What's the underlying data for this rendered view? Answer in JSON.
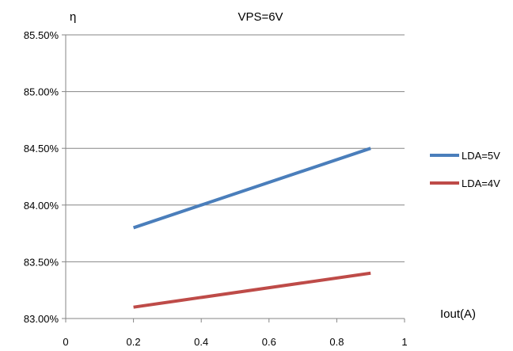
{
  "chart_data": {
    "type": "line",
    "title": "VPS=6V",
    "xlabel": "Iout(A)",
    "ylabel": "η",
    "xlim": [
      0,
      1
    ],
    "ylim": [
      0.83,
      0.855
    ],
    "x_ticks": [
      0,
      0.2,
      0.4,
      0.6,
      0.8,
      1
    ],
    "x_tick_labels": [
      "0",
      "0.2",
      "0.4",
      "0.6",
      "0.8",
      "1"
    ],
    "y_ticks": [
      0.83,
      0.835,
      0.84,
      0.845,
      0.85,
      0.855
    ],
    "y_tick_labels": [
      "83.00%",
      "83.50%",
      "84.00%",
      "84.50%",
      "85.00%",
      "85.50%"
    ],
    "grid": "horizontal",
    "legend_position": "right",
    "series": [
      {
        "name": "LDA=5V",
        "color": "#4a7ebb",
        "x": [
          0.2,
          0.9
        ],
        "y": [
          0.838,
          0.845
        ]
      },
      {
        "name": "LDA=4V",
        "color": "#be4b48",
        "x": [
          0.2,
          0.9
        ],
        "y": [
          0.831,
          0.834
        ]
      }
    ]
  }
}
